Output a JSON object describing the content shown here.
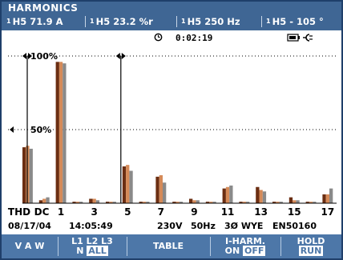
{
  "header": {
    "title": "HARMONICS",
    "readings": [
      {
        "phase": "1",
        "text": "H5   71.9 A"
      },
      {
        "phase": "1",
        "text": "H5   23.2 %r"
      },
      {
        "phase": "1",
        "text": "H5   250  Hz"
      },
      {
        "phase": "1",
        "text": "H5 - 105  °"
      }
    ]
  },
  "status": {
    "timer": "0:02:19",
    "timer_icon": "clock-icon",
    "power_icon": "battery-plug-icon"
  },
  "chart_data": {
    "type": "bar",
    "ylabels": [
      "100%",
      "50%"
    ],
    "yticks": [
      100,
      50
    ],
    "ylim": [
      0,
      100
    ],
    "categories": [
      "THD",
      "DC",
      "1",
      "2",
      "3",
      "4",
      "5",
      "6",
      "7",
      "8",
      "9",
      "10",
      "11",
      "12",
      "13",
      "14",
      "15",
      "16",
      "17"
    ],
    "xlabels": [
      "THD",
      "DC",
      "1",
      "3",
      "5",
      "7",
      "9",
      "11",
      "13",
      "15",
      "17"
    ],
    "cursor": "5",
    "series": [
      {
        "color": "#6b2e12",
        "values": [
          38,
          2,
          96,
          1,
          3,
          1,
          25,
          1,
          18,
          1,
          3,
          1,
          10,
          1,
          11,
          1,
          4,
          1,
          6
        ]
      },
      {
        "color": "#d58a58",
        "values": [
          39,
          3,
          96,
          1,
          3,
          1,
          26,
          1,
          19,
          1,
          2,
          1,
          11,
          1,
          9,
          1,
          2,
          1,
          6
        ]
      },
      {
        "color": "#8a8a8a",
        "values": [
          37,
          4,
          95,
          1,
          2,
          1,
          22,
          1,
          14,
          1,
          2,
          1,
          12,
          1,
          8,
          1,
          2,
          1,
          10
        ]
      }
    ]
  },
  "info": {
    "date": "08/17/04",
    "time": "14:05:49",
    "voltage": "230V",
    "frequency": "50Hz",
    "config": "3Ø WYE",
    "standard": "EN50160"
  },
  "softkeys": [
    {
      "line1": "V  A  W",
      "line1_inv": "",
      "line2": "",
      "line2_inv": ""
    },
    {
      "line1": "L1 L2 L3",
      "line1_inv": "",
      "line2": "N ",
      "line2_inv": "ALL"
    },
    {
      "line1": "TABLE",
      "line1_inv": "",
      "line2": "",
      "line2_inv": ""
    },
    {
      "line1": "I-HARM.",
      "line1_inv": "",
      "line2": "ON ",
      "line2_inv": "OFF"
    },
    {
      "line1": "HOLD",
      "line1_inv": "",
      "line2": "",
      "line2_inv": "RUN"
    }
  ],
  "colors": {
    "title_bg": "#3f6694",
    "softkey_bg": "#4d77a8"
  }
}
